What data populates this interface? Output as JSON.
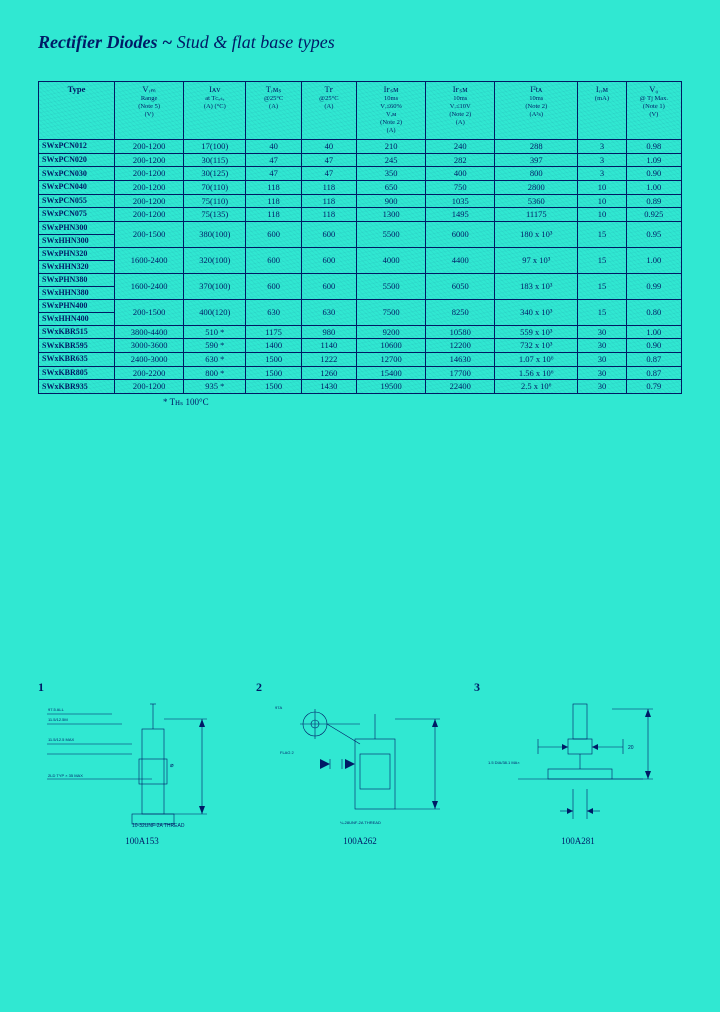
{
  "title": {
    "bold": "Rectifier Diodes ~",
    "rest": " Stud & flat base types"
  },
  "colors": {
    "background": "#30e8d2",
    "ink": "#001a66"
  },
  "table": {
    "headers": [
      {
        "main": "Type",
        "sub": ""
      },
      {
        "main": "Vᵣₘ",
        "sub": "Range\n(Note 5)\n(V)"
      },
      {
        "main": "Iᴀᴠ",
        "sub": "at Tᴄₐₛₑ\n(A) (°C)"
      },
      {
        "main": "Tᵣᴍₛ",
        "sub": "@25°C\n(A)"
      },
      {
        "main": "Tғ",
        "sub": "@25°C\n(A)"
      },
      {
        "main": "Iғₛᴍ",
        "sub": "10ms\nVᵣ≤60%\nVᵣᴍ\n(Note 2)\n(A)"
      },
      {
        "main": "Iғₛᴍ",
        "sub": "10ms\nVᵣ≤10V\n(Note 2)\n(A)"
      },
      {
        "main": "I²tᴀ",
        "sub": "10ms\n(Note 2)\n(A²s)"
      },
      {
        "main": "Iᵣᵣᴍ",
        "sub": "(mA)"
      },
      {
        "main": "V₀",
        "sub": "@ Tj Max.\n(Note 1)\n(V)"
      }
    ],
    "rows": [
      {
        "type": [
          "SWxPCN012"
        ],
        "cells": [
          "200-1200",
          "17(100)",
          "40",
          "40",
          "210",
          "240",
          "288",
          "3",
          "0.98"
        ]
      },
      {
        "type": [
          "SWxPCN020"
        ],
        "cells": [
          "200-1200",
          "30(115)",
          "47",
          "47",
          "245",
          "282",
          "397",
          "3",
          "1.09"
        ]
      },
      {
        "type": [
          "SWxPCN030"
        ],
        "cells": [
          "200-1200",
          "30(125)",
          "47",
          "47",
          "350",
          "400",
          "800",
          "3",
          "0.90"
        ]
      },
      {
        "type": [
          "SWxPCN040"
        ],
        "cells": [
          "200-1200",
          "70(110)",
          "118",
          "118",
          "650",
          "750",
          "2800",
          "10",
          "1.00"
        ]
      },
      {
        "type": [
          "SWxPCN055"
        ],
        "cells": [
          "200-1200",
          "75(110)",
          "118",
          "118",
          "900",
          "1035",
          "5360",
          "10",
          "0.89"
        ]
      },
      {
        "type": [
          "SWxPCN075"
        ],
        "cells": [
          "200-1200",
          "75(135)",
          "118",
          "118",
          "1300",
          "1495",
          "11175",
          "10",
          "0.925"
        ]
      },
      {
        "type": [
          "SWxPHN300",
          "SWxHHN300"
        ],
        "cells": [
          "200-1500",
          "380(100)",
          "600",
          "600",
          "5500",
          "6000",
          "180 x 10³",
          "15",
          "0.95"
        ]
      },
      {
        "type": [
          "SWxPHN320",
          "SWxHHN320"
        ],
        "cells": [
          "1600-2400",
          "320(100)",
          "600",
          "600",
          "4000",
          "4400",
          "97 x 10³",
          "15",
          "1.00"
        ]
      },
      {
        "type": [
          "SWxPHN380",
          "SWxHHN380"
        ],
        "cells": [
          "1600-2400",
          "370(100)",
          "600",
          "600",
          "5500",
          "6050",
          "183 x 10³",
          "15",
          "0.99"
        ]
      },
      {
        "type": [
          "SWxPHN400",
          "SWxHHN400"
        ],
        "cells": [
          "200-1500",
          "400(120)",
          "630",
          "630",
          "7500",
          "8250",
          "340 x 10³",
          "15",
          "0.80"
        ]
      },
      {
        "type": [
          "SWxKBR515"
        ],
        "cells": [
          "3800-4400",
          "510 *",
          "1175",
          "980",
          "9200",
          "10580",
          "559 x 10³",
          "30",
          "1.00"
        ]
      },
      {
        "type": [
          "SWxKBR595"
        ],
        "cells": [
          "3000-3600",
          "590 *",
          "1400",
          "1140",
          "10600",
          "12200",
          "732 x 10³",
          "30",
          "0.90"
        ]
      },
      {
        "type": [
          "SWxKBR635"
        ],
        "cells": [
          "2400-3000",
          "630 *",
          "1500",
          "1222",
          "12700",
          "14630",
          "1.07 x 10⁶",
          "30",
          "0.87"
        ]
      },
      {
        "type": [
          "SWxKBR805"
        ],
        "cells": [
          "200-2200",
          "800 *",
          "1500",
          "1260",
          "15400",
          "17700",
          "1.56 x 10⁶",
          "30",
          "0.87"
        ]
      },
      {
        "type": [
          "SWxKBR935"
        ],
        "cells": [
          "200-1200",
          "935 *",
          "1500",
          "1430",
          "19500",
          "22400",
          "2.5 x 10⁶",
          "30",
          "0.79"
        ]
      }
    ],
    "footnote": "* Tʜₛ 100°C"
  },
  "diagrams": [
    {
      "num": "1",
      "caption": "100A153"
    },
    {
      "num": "2",
      "caption": "100A262"
    },
    {
      "num": "3",
      "caption": "100A281"
    }
  ]
}
